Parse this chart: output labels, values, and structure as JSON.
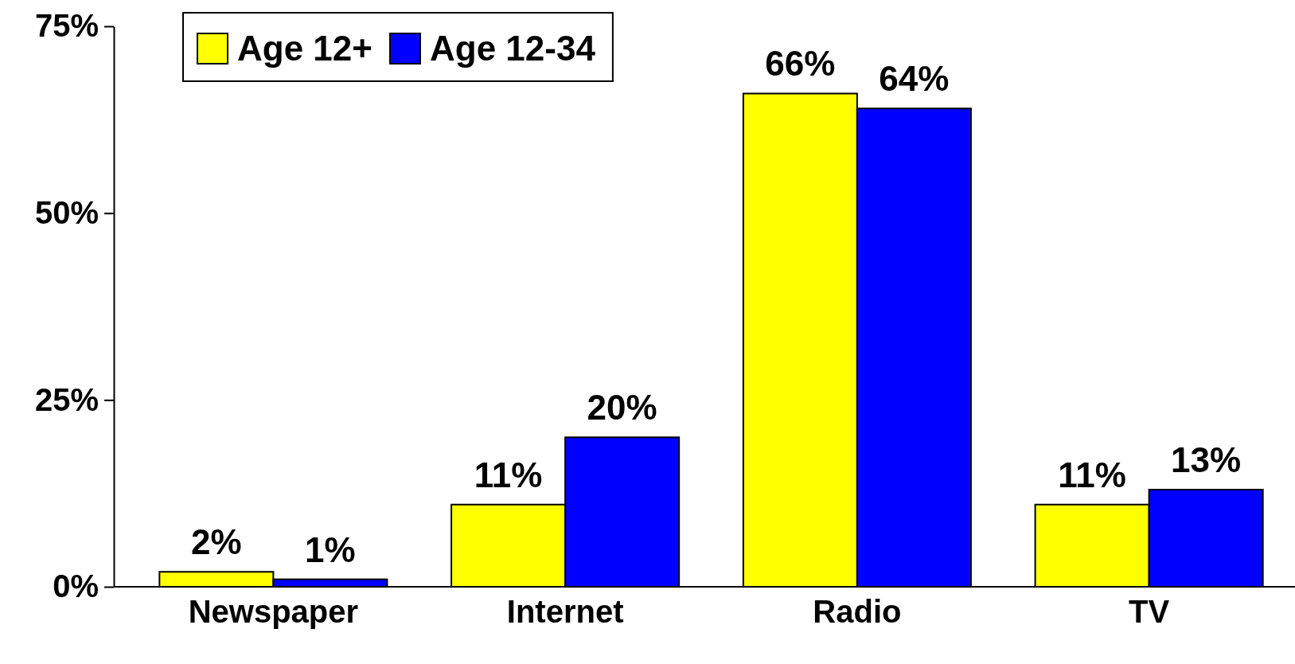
{
  "chart_data": {
    "type": "bar",
    "categories": [
      "Newspaper",
      "Internet",
      "Radio",
      "TV"
    ],
    "series": [
      {
        "name": "Age 12+",
        "color": "#ffff00",
        "values": [
          2,
          11,
          66,
          11
        ],
        "value_labels": [
          "2%",
          "11%",
          "66%",
          "11%"
        ]
      },
      {
        "name": "Age 12-34",
        "color": "#0000ff",
        "values": [
          1,
          20,
          64,
          13
        ],
        "value_labels": [
          "1%",
          "20%",
          "64%",
          "13%"
        ]
      }
    ],
    "ylim": [
      0,
      75
    ],
    "yticks": [
      {
        "value": 0,
        "label": "0%"
      },
      {
        "value": 25,
        "label": "25%"
      },
      {
        "value": 50,
        "label": "50%"
      },
      {
        "value": 75,
        "label": "75%"
      }
    ],
    "grid": false,
    "legend": "top left"
  }
}
